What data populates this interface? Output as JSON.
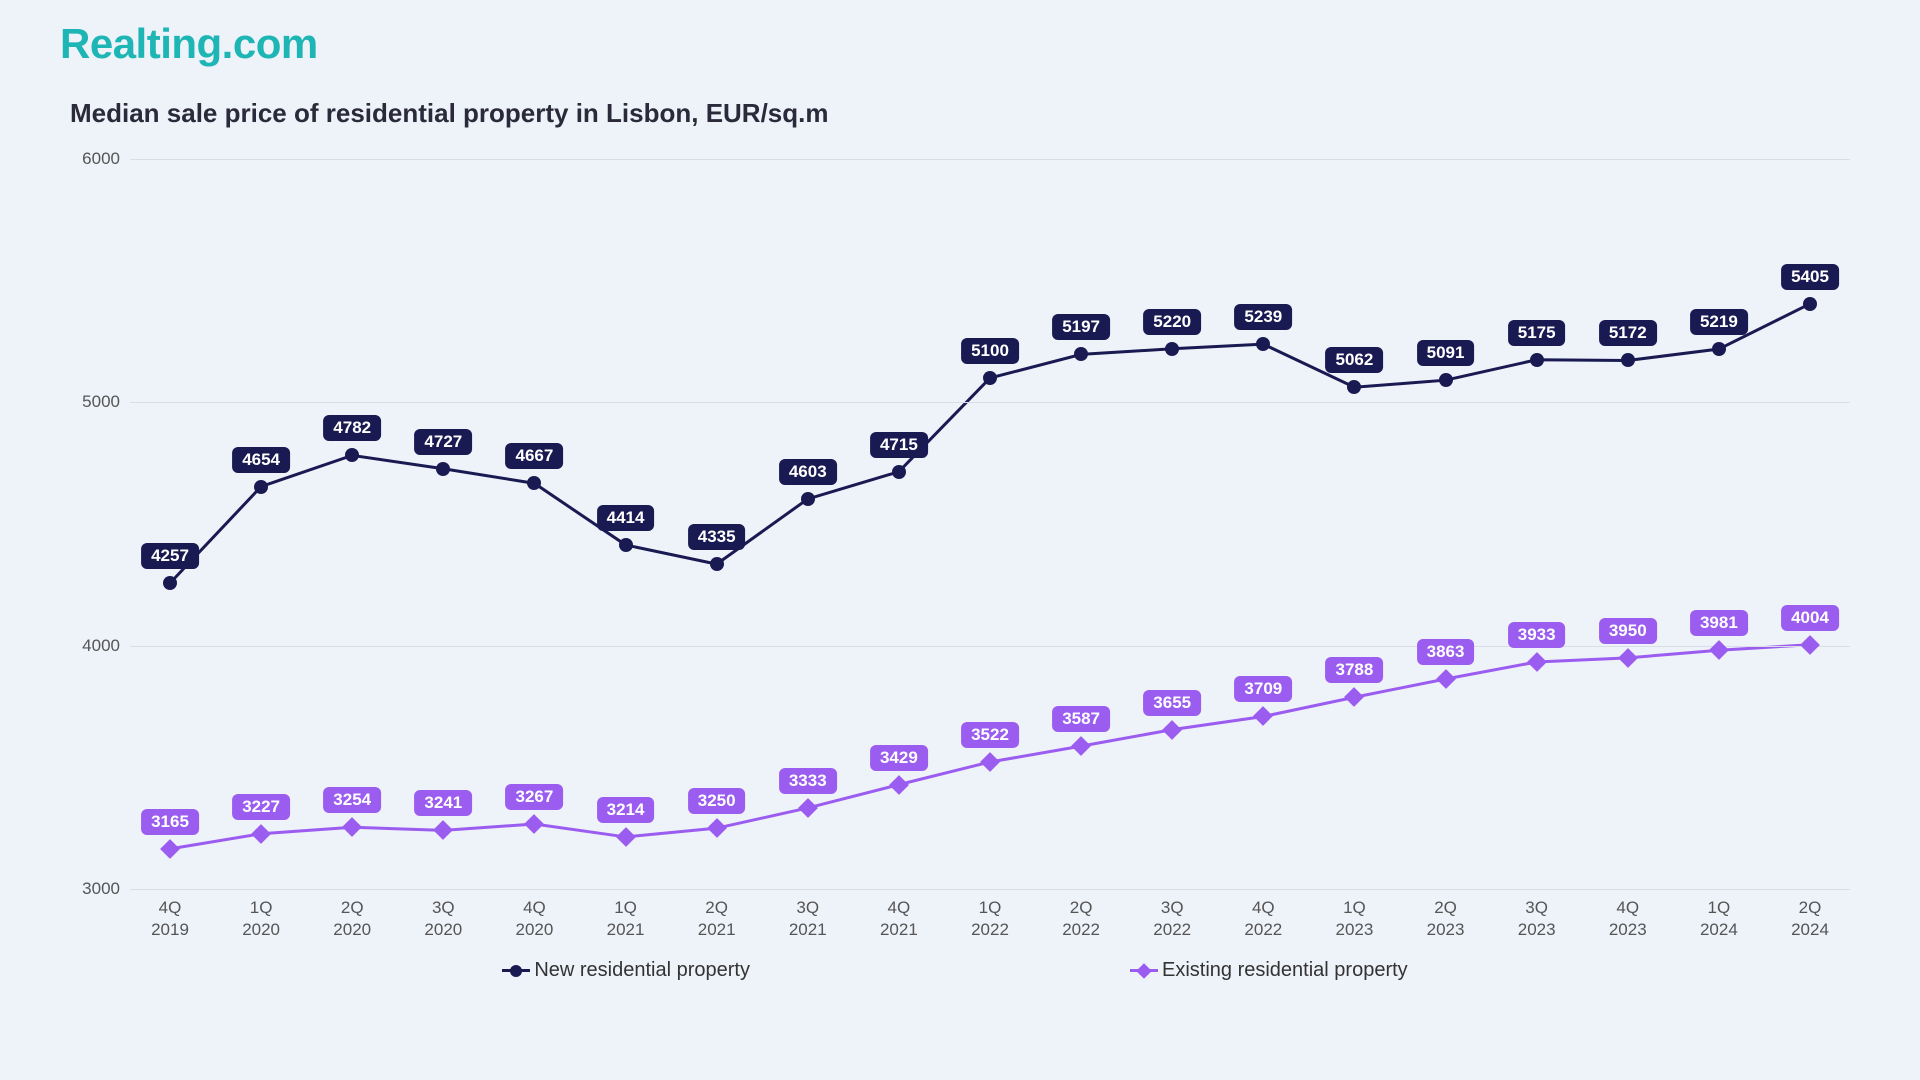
{
  "logo": "Realting.com",
  "chart": {
    "type": "line",
    "title": "Median sale price of residential property in Lisbon, EUR/sq.m",
    "background_color": "#eef2f9",
    "grid_color": "#d8dde8",
    "title_fontsize": 26,
    "label_fontsize": 17,
    "ylim": [
      3000,
      6000
    ],
    "ytick_step": 1000,
    "yticks": [
      3000,
      4000,
      5000,
      6000
    ],
    "categories": [
      "4Q\n2019",
      "1Q\n2020",
      "2Q\n2020",
      "3Q\n2020",
      "4Q\n2020",
      "1Q\n2021",
      "2Q\n2021",
      "3Q\n2021",
      "4Q\n2021",
      "1Q\n2022",
      "2Q\n2022",
      "3Q\n2022",
      "4Q\n2022",
      "1Q\n2023",
      "2Q\n2023",
      "3Q\n2023",
      "4Q\n2023",
      "1Q\n2024",
      "2Q\n2024"
    ],
    "series": [
      {
        "name": "New residential property",
        "color": "#1a1a52",
        "label_bg": "#1a1a52",
        "marker": "circle",
        "line_width": 3,
        "values": [
          4257,
          4654,
          4782,
          4727,
          4667,
          4414,
          4335,
          4603,
          4715,
          5100,
          5197,
          5220,
          5239,
          5062,
          5091,
          5175,
          5172,
          5219,
          5405
        ]
      },
      {
        "name": "Existing residential property",
        "color": "#9b5cf0",
        "label_bg": "#9b5cf0",
        "marker": "diamond",
        "line_width": 3,
        "values": [
          3165,
          3227,
          3254,
          3241,
          3267,
          3214,
          3250,
          3333,
          3429,
          3522,
          3587,
          3655,
          3709,
          3788,
          3863,
          3933,
          3950,
          3981,
          4004
        ]
      }
    ]
  }
}
